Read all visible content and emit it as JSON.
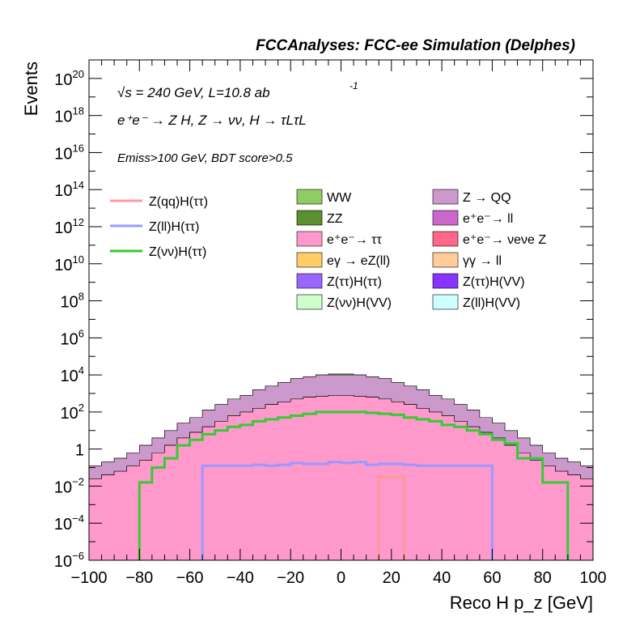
{
  "chart_data": {
    "type": "area",
    "title": "FCCAnalyses: FCC-ee Simulation (Delphes)",
    "xlabel": "Reco H p_z [GeV]",
    "ylabel": "Events",
    "xlim": [
      -100,
      100
    ],
    "ylim_log10": [
      -6,
      21
    ],
    "y_scale": "log",
    "x_ticks": [
      "−100",
      "−80",
      "−60",
      "−40",
      "−20",
      "0",
      "20",
      "40",
      "60",
      "80",
      "100"
    ],
    "y_ticks": [
      {
        "base": "10",
        "exp": "20"
      },
      {
        "base": "10",
        "exp": "18"
      },
      {
        "base": "10",
        "exp": "16"
      },
      {
        "base": "10",
        "exp": "14"
      },
      {
        "base": "10",
        "exp": "12"
      },
      {
        "base": "10",
        "exp": "10"
      },
      {
        "base": "10",
        "exp": "8"
      },
      {
        "base": "10",
        "exp": "6"
      },
      {
        "base": "10",
        "exp": "4"
      },
      {
        "base": "10",
        "exp": "2"
      },
      {
        "base": "1",
        "exp": ""
      },
      {
        "base": "10",
        "exp": "−2"
      },
      {
        "base": "10",
        "exp": "−4"
      },
      {
        "base": "10",
        "exp": "−6"
      }
    ],
    "annotations": {
      "energy": "√s = 240 GeV, L=10.8 ab",
      "energy_exp": "-1",
      "process": "e⁺e⁻ → Z H, Z → νν, H → τLτL",
      "cuts": "Emiss>100 GeV, BDT score>0.5"
    },
    "signal_legend": [
      {
        "name": "Z(qq)H(ττ)",
        "color": "#ff9999"
      },
      {
        "name": "Z(ll)H(ττ)",
        "color": "#9999ff"
      },
      {
        "name": "Z(νν)H(ττ)",
        "color": "#33cc33"
      }
    ],
    "background_legend": [
      {
        "name": "WW",
        "color": "#8fcc66"
      },
      {
        "name": "Z → QQ",
        "color": "#cc99cc"
      },
      {
        "name": "ZZ",
        "color": "#5c8f2e"
      },
      {
        "name": "e⁺e⁻→ ll",
        "color": "#cc66cc"
      },
      {
        "name": "e⁺e⁻→ ττ",
        "color": "#ff99cc"
      },
      {
        "name": "e⁺e⁻→ νeνe Z",
        "color": "#ff6688"
      },
      {
        "name": "eγ → eZ(ll)",
        "color": "#ffcc66"
      },
      {
        "name": "γγ → ll",
        "color": "#ffcc99"
      },
      {
        "name": "Z(ττ)H(ττ)",
        "color": "#9966ff"
      },
      {
        "name": "Z(ττ)H(VV)",
        "color": "#8833ff"
      },
      {
        "name": "Z(νν)H(VV)",
        "color": "#ccffcc"
      },
      {
        "name": "Z(ll)H(VV)",
        "color": "#ccffff"
      }
    ],
    "bin_edges_x": [
      -100,
      -95,
      -90,
      -85,
      -80,
      -75,
      -70,
      -65,
      -60,
      -55,
      -50,
      -45,
      -40,
      -35,
      -30,
      -25,
      -20,
      -15,
      -10,
      -5,
      0,
      5,
      10,
      15,
      20,
      25,
      30,
      35,
      40,
      45,
      50,
      55,
      60,
      65,
      70,
      75,
      80,
      85,
      90,
      95,
      100
    ],
    "stack_log10": {
      "WW": [
        -0.9,
        -0.7,
        -0.5,
        -0.2,
        0.2,
        0.6,
        1.0,
        1.4,
        1.7,
        2.1,
        2.4,
        2.7,
        2.9,
        3.2,
        3.4,
        3.6,
        3.8,
        3.9,
        4.0,
        4.05,
        4.05,
        4.0,
        3.9,
        3.8,
        3.6,
        3.4,
        3.2,
        2.9,
        2.7,
        2.4,
        2.1,
        1.7,
        1.4,
        1.0,
        0.6,
        0.2,
        -0.2,
        -0.5,
        -0.7,
        -0.9
      ],
      "Z → QQ": [
        -0.9,
        -0.7,
        -0.5,
        -0.2,
        0.2,
        0.6,
        1.0,
        1.4,
        1.7,
        2.1,
        2.4,
        2.7,
        2.9,
        3.2,
        3.4,
        3.6,
        3.8,
        3.9,
        4.0,
        4.0,
        4.0,
        4.0,
        3.9,
        3.8,
        3.6,
        3.4,
        3.2,
        2.9,
        2.7,
        2.4,
        2.1,
        1.7,
        1.4,
        1.0,
        0.6,
        0.2,
        -0.2,
        -0.5,
        -0.7,
        -0.9
      ],
      "ZZ": [
        -1.6,
        -1.4,
        -1.2,
        -0.9,
        -0.6,
        -0.2,
        0.2,
        0.6,
        0.9,
        1.2,
        1.5,
        1.8,
        2.0,
        2.2,
        2.4,
        2.55,
        2.7,
        2.8,
        2.85,
        2.9,
        2.9,
        2.85,
        2.8,
        2.7,
        2.55,
        2.4,
        2.2,
        2.0,
        1.8,
        1.5,
        1.2,
        0.9,
        0.6,
        0.2,
        -0.2,
        -0.6,
        -0.9,
        -1.2,
        -1.4,
        -1.6
      ],
      "e⁺e⁻→ ll": [
        -1.6,
        -1.4,
        -1.2,
        -0.9,
        -0.6,
        -0.2,
        0.2,
        0.6,
        0.9,
        1.2,
        1.5,
        1.8,
        2.0,
        2.2,
        2.4,
        2.55,
        2.7,
        2.8,
        2.85,
        2.9,
        2.9,
        2.85,
        2.8,
        2.7,
        2.55,
        2.4,
        2.2,
        2.0,
        1.8,
        1.5,
        1.2,
        0.9,
        0.6,
        0.2,
        -0.2,
        -0.6,
        -0.9,
        -1.2,
        -1.4,
        -1.6
      ],
      "e⁺e⁻→ ττ": [
        -1.6,
        -1.4,
        -1.2,
        -0.9,
        -0.6,
        -0.2,
        0.2,
        0.6,
        0.9,
        1.2,
        1.5,
        1.8,
        2.0,
        2.2,
        2.4,
        2.55,
        2.7,
        2.8,
        2.85,
        2.9,
        2.9,
        2.85,
        2.8,
        2.7,
        2.55,
        2.4,
        2.2,
        2.0,
        1.8,
        1.5,
        1.2,
        0.9,
        0.6,
        0.2,
        -0.2,
        -0.6,
        -0.9,
        -1.2,
        -1.4,
        -1.6
      ]
    },
    "signal_log10": {
      "Z(νν)H(ττ)": [
        null,
        null,
        null,
        null,
        -1.8,
        -1.0,
        -0.5,
        0.2,
        0.5,
        0.8,
        1.0,
        1.2,
        1.3,
        1.5,
        1.6,
        1.7,
        1.8,
        1.9,
        2.0,
        2.0,
        2.0,
        2.0,
        1.95,
        1.9,
        1.85,
        1.7,
        1.6,
        1.5,
        1.3,
        1.2,
        1.0,
        0.8,
        0.5,
        0.3,
        -0.5,
        -0.5,
        -1.8,
        -1.8,
        null,
        null
      ],
      "Z(ll)H(ττ)": [
        null,
        null,
        null,
        null,
        null,
        null,
        null,
        null,
        null,
        -0.9,
        -0.9,
        -0.9,
        -0.9,
        -0.85,
        -0.9,
        -0.85,
        -0.75,
        -0.8,
        -0.8,
        -0.7,
        -0.75,
        -0.7,
        -0.85,
        -0.8,
        -0.8,
        -0.85,
        -0.9,
        -0.9,
        -0.9,
        -0.9,
        -0.9,
        -0.9,
        null,
        null,
        null,
        null,
        null,
        null,
        null,
        null
      ],
      "Z(qq)H(ττ)": [
        null,
        null,
        null,
        null,
        null,
        null,
        null,
        null,
        null,
        null,
        null,
        null,
        null,
        null,
        null,
        null,
        null,
        null,
        null,
        null,
        null,
        null,
        null,
        -1.5,
        -1.5,
        null,
        null,
        null,
        null,
        null,
        null,
        null,
        null,
        null,
        null,
        null,
        null,
        null,
        null,
        null
      ]
    }
  }
}
